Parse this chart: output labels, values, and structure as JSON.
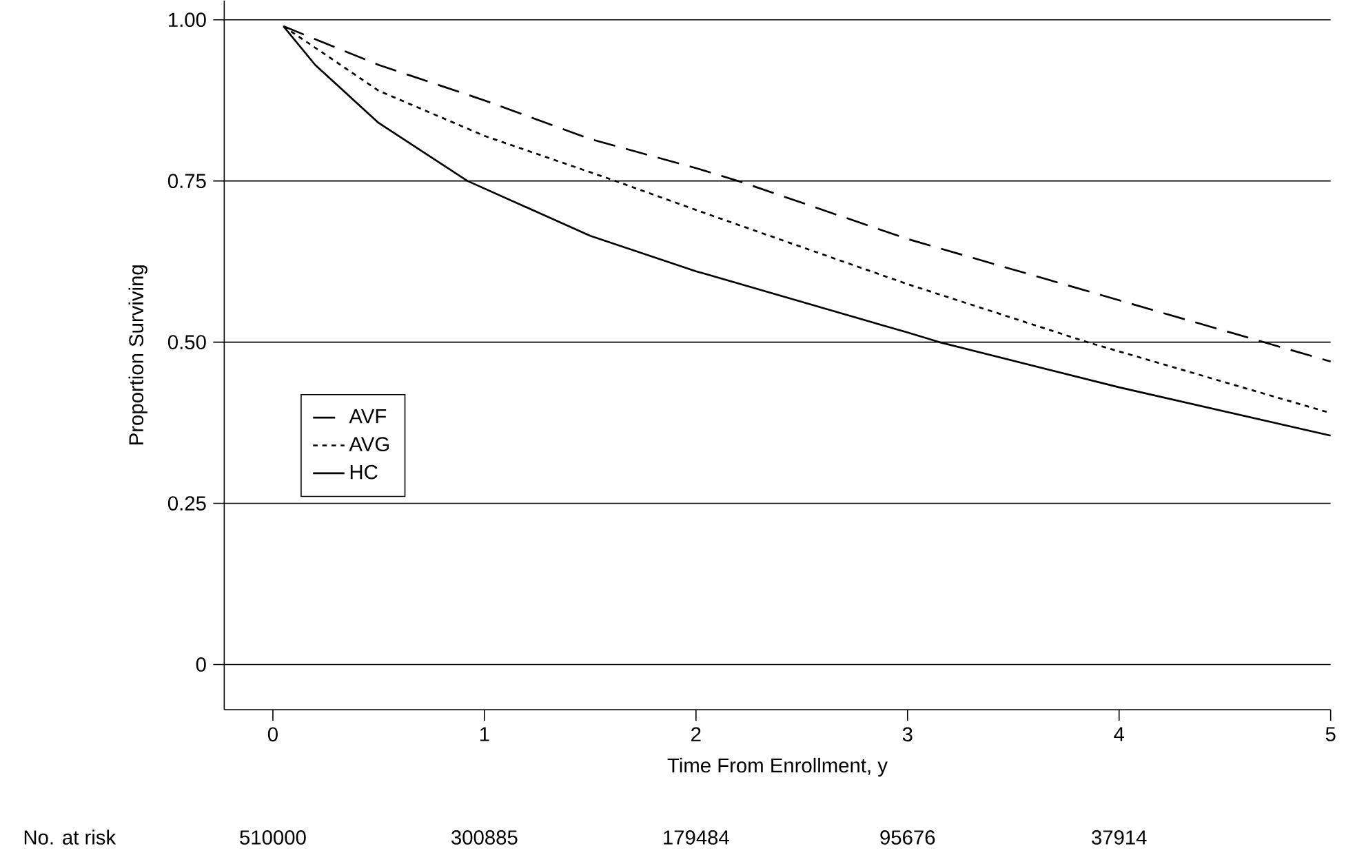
{
  "chart_data": {
    "type": "line",
    "xlabel": "Time From Enrollment, y",
    "ylabel": "Proportion Surviving",
    "xlim": [
      -0.23,
      5
    ],
    "ylim": [
      -0.07,
      1.03
    ],
    "xticks": [
      0,
      1,
      2,
      3,
      4,
      5
    ],
    "yticks": [
      {
        "value": 0,
        "label": "0"
      },
      {
        "value": 0.25,
        "label": "0.25"
      },
      {
        "value": 0.5,
        "label": "0.50"
      },
      {
        "value": 0.75,
        "label": "0.75"
      },
      {
        "value": 1,
        "label": "1.00"
      }
    ],
    "grid": "y",
    "legend": "left",
    "series": [
      {
        "name": "AVF",
        "color": "#000000",
        "line_style": "dashed",
        "x": [
          0.05,
          0.5,
          1,
          1.5,
          2,
          2.2,
          3,
          4,
          5
        ],
        "values": [
          0.99,
          0.93,
          0.875,
          0.815,
          0.77,
          0.75,
          0.66,
          0.565,
          0.47
        ]
      },
      {
        "name": "AVG",
        "color": "#000000",
        "line_style": "dotted",
        "x": [
          0.05,
          0.5,
          1,
          1.62,
          2,
          3,
          3.85,
          5
        ],
        "values": [
          0.99,
          0.89,
          0.82,
          0.75,
          0.705,
          0.59,
          0.5,
          0.39
        ]
      },
      {
        "name": "HC",
        "color": "#000000",
        "line_style": "solid",
        "x": [
          0.05,
          0.2,
          0.5,
          0.92,
          1.5,
          2,
          3,
          3.15,
          4,
          5
        ],
        "values": [
          0.99,
          0.93,
          0.84,
          0.75,
          0.665,
          0.61,
          0.515,
          0.5,
          0.43,
          0.355
        ]
      }
    ],
    "annotations": [
      "No. at risk",
      "510000",
      "300885",
      "179484",
      "95676",
      "37914"
    ]
  }
}
